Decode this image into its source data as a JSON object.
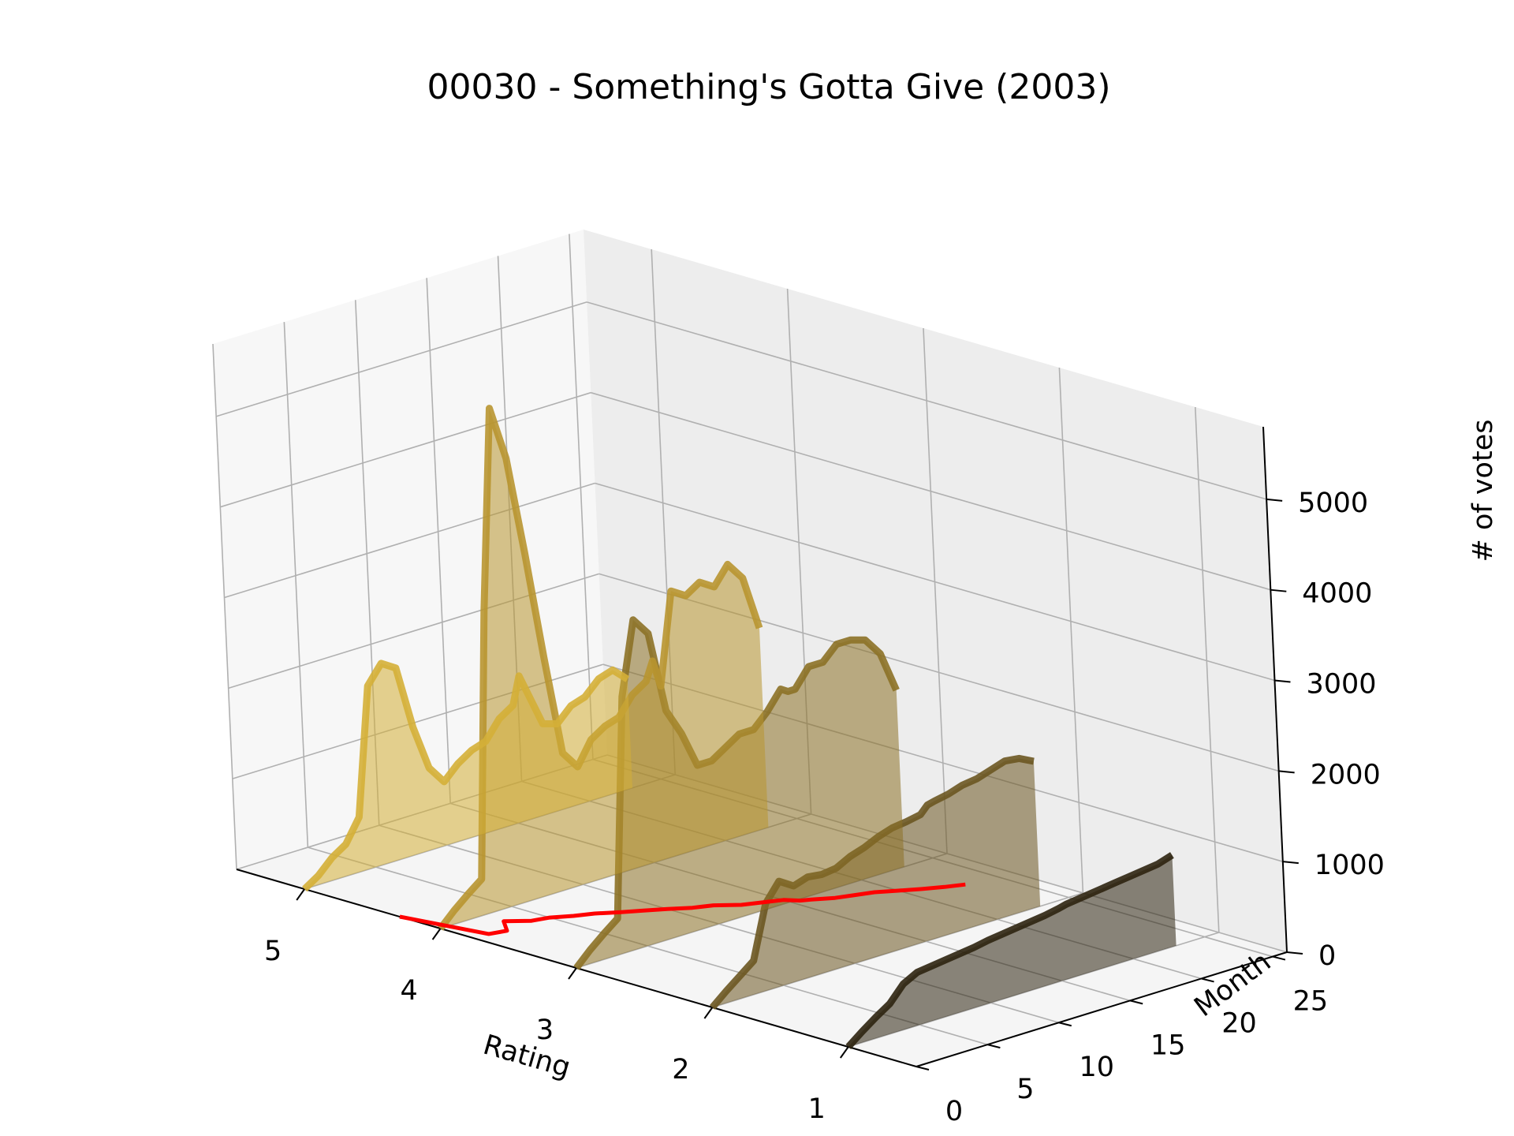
{
  "chart_data": {
    "type": "area",
    "title": "00030 - Something's Gotta Give (2003)",
    "xlabel": "Rating",
    "ylabel": "Month",
    "zlabel": "# of votes",
    "x_ticks": [
      5,
      4,
      3,
      2,
      1
    ],
    "y_ticks": [
      0,
      5,
      10,
      15,
      20,
      25
    ],
    "z_ticks": [
      0,
      1000,
      2000,
      3000,
      4000,
      5000
    ],
    "ylim": [
      0,
      26
    ],
    "zlim": [
      0,
      5800
    ],
    "grid": true,
    "months": [
      0,
      1,
      2,
      3,
      4,
      5,
      6,
      7,
      8,
      9,
      10,
      11,
      12,
      13,
      14,
      15,
      15.5,
      16,
      17,
      18,
      19,
      20,
      21,
      22,
      23
    ],
    "series": [
      {
        "rating": 5,
        "color": "#d4af37",
        "values": [
          0,
          100,
          250,
          350,
          600,
          2000,
          2200,
          2100,
          1400,
          900,
          700,
          850,
          950,
          1000,
          1200,
          1300,
          1600,
          1400,
          1000,
          950,
          1100,
          1150,
          1300,
          1350,
          1200
        ]
      },
      {
        "rating": 4,
        "color": "#b89530",
        "values": [
          0,
          150,
          280,
          400,
          3300,
          5500,
          4900,
          3800,
          2600,
          1500,
          1300,
          1550,
          1650,
          1700,
          1900,
          2000,
          2200,
          1900,
          2900,
          2800,
          2900,
          2800,
          3000,
          2800,
          2200
        ]
      },
      {
        "rating": 3,
        "color": "#8c7126",
        "values": [
          0,
          150,
          280,
          400,
          2800,
          3600,
          3400,
          2500,
          2200,
          1800,
          1800,
          1900,
          2000,
          2000,
          2150,
          2350,
          2300,
          2300,
          2500,
          2500,
          2650,
          2650,
          2600,
          2400,
          1950
        ]
      },
      {
        "rating": 2,
        "color": "#6b5621",
        "values": [
          0,
          130,
          250,
          370,
          950,
          1150,
          1050,
          1100,
          1080,
          1100,
          1180,
          1230,
          1300,
          1350,
          1370,
          1400,
          1480,
          1500,
          1530,
          1580,
          1600,
          1650,
          1700,
          1680,
          1600
        ]
      },
      {
        "rating": 1,
        "color": "#2e2410",
        "values": [
          0,
          120,
          230,
          330,
          500,
          580,
          600,
          620,
          640,
          660,
          690,
          710,
          730,
          750,
          770,
          800,
          820,
          830,
          850,
          870,
          890,
          910,
          930,
          950,
          1000
        ]
      }
    ],
    "mean_line": {
      "color": "#ff0000",
      "ratings": [
        4.3,
        3.75,
        3.72,
        3.85,
        3.75,
        3.72,
        3.65,
        3.6,
        3.52,
        3.45,
        3.38,
        3.3,
        3.25,
        3.15,
        3.1,
        3.05,
        2.98,
        2.95,
        2.88,
        2.84,
        2.8,
        2.73,
        2.66,
        2.6,
        2.55
      ]
    }
  }
}
